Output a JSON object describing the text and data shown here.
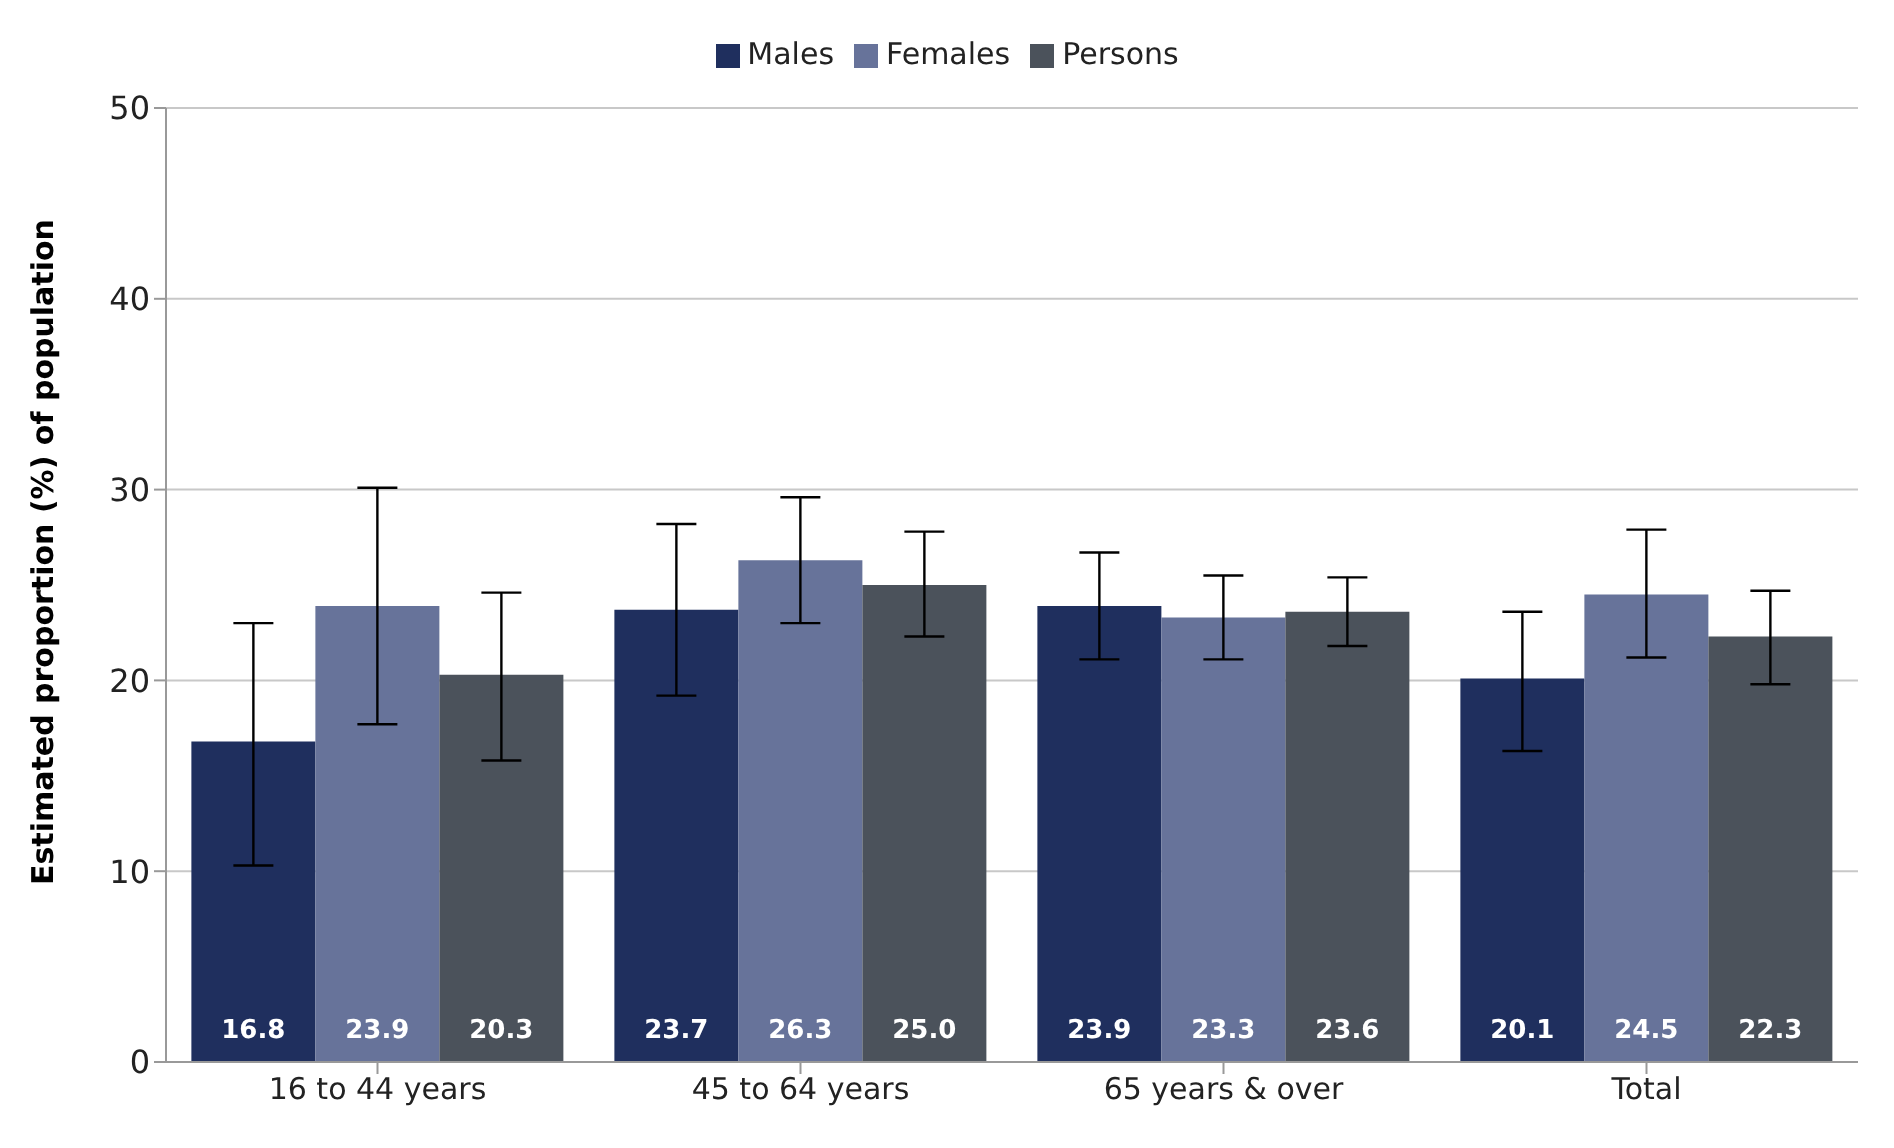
{
  "chart_data": {
    "type": "bar",
    "ylabel": "Estimated proportion (%) of population",
    "categories": [
      "16 to 44 years",
      "45 to 64 years",
      "65 years & over",
      "Total"
    ],
    "series": [
      {
        "name": "Males",
        "color": "#1f2f5e",
        "values": [
          16.8,
          23.7,
          23.9,
          20.1
        ],
        "value_labels": [
          "16.8",
          "23.7",
          "23.9",
          "20.1"
        ],
        "errors": [
          [
            10.3,
            23.0
          ],
          [
            19.2,
            28.2
          ],
          [
            21.1,
            26.7
          ],
          [
            16.3,
            23.6
          ]
        ]
      },
      {
        "name": "Females",
        "color": "#67739a",
        "values": [
          23.9,
          26.3,
          23.3,
          24.5
        ],
        "value_labels": [
          "23.9",
          "26.3",
          "23.3",
          "24.5"
        ],
        "errors": [
          [
            17.7,
            30.1
          ],
          [
            23.0,
            29.6
          ],
          [
            21.1,
            25.5
          ],
          [
            21.2,
            27.9
          ]
        ]
      },
      {
        "name": "Persons",
        "color": "#4b525b",
        "values": [
          20.3,
          25.0,
          23.6,
          22.3
        ],
        "value_labels": [
          "20.3",
          "25.0",
          "23.6",
          "22.3"
        ],
        "errors": [
          [
            15.8,
            24.6
          ],
          [
            22.3,
            27.8
          ],
          [
            21.8,
            25.4
          ],
          [
            19.8,
            24.7
          ]
        ]
      }
    ],
    "ylim": [
      0,
      50
    ],
    "yticks": [
      0,
      10,
      20,
      30,
      40,
      50
    ],
    "grid": "y",
    "legend": "top"
  }
}
